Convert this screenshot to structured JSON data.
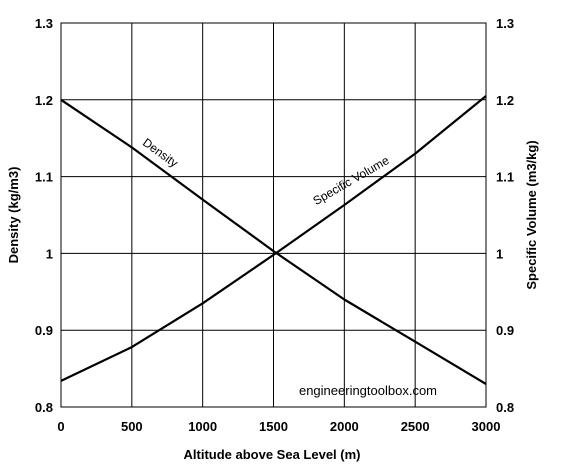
{
  "chart_data": {
    "type": "line",
    "xlabel": "Altitude above Sea Level (m)",
    "ylabel_left": "Density (kg/m3)",
    "ylabel_right": "Specific Volume (m3/kg)",
    "xlim": [
      0,
      3000
    ],
    "ylim": [
      0.8,
      1.3
    ],
    "x_ticks": [
      "0",
      "500",
      "1000",
      "1500",
      "2000",
      "2500",
      "3000"
    ],
    "y_ticks": [
      "0.8",
      "0.9",
      "1",
      "1.1",
      "1.2",
      "1.3"
    ],
    "grid": true,
    "series": [
      {
        "name": "Density",
        "x": [
          0,
          500,
          1000,
          1500,
          2000,
          2500,
          3000
        ],
        "y": [
          1.2,
          1.138,
          1.07,
          1.003,
          0.94,
          0.885,
          0.83
        ]
      },
      {
        "name": "Specific Volume",
        "x": [
          0,
          500,
          1000,
          1500,
          2000,
          2500,
          3000
        ],
        "y": [
          0.834,
          0.878,
          0.935,
          0.998,
          1.063,
          1.13,
          1.205
        ]
      }
    ],
    "watermark": "engineeringtoolbox.com",
    "colors": {
      "line": "#000000",
      "grid": "#000000",
      "background": "#ffffff"
    }
  }
}
